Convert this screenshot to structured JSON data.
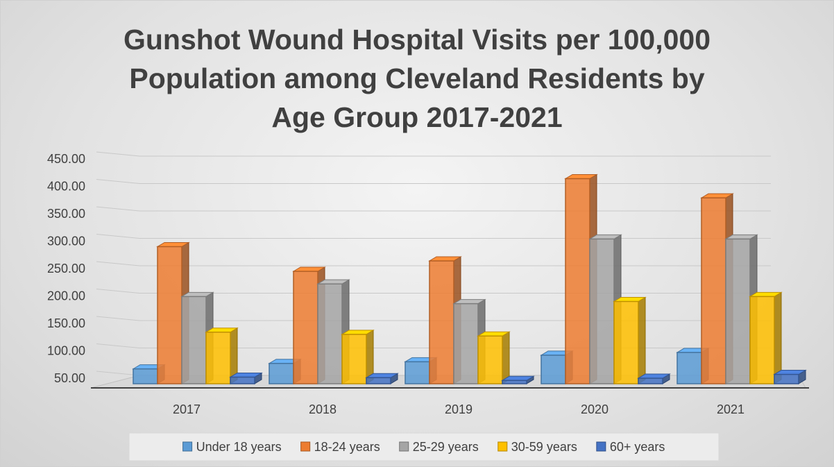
{
  "chart_data": {
    "type": "bar3d",
    "title": "Gunshot Wound Hospital Visits per 100,000 Population among Cleveland Residents by Age Group 2017-2021",
    "categories": [
      "2017",
      "2018",
      "2019",
      "2020",
      "2021"
    ],
    "series": [
      {
        "name": "Under 18 years",
        "color": "#5b9bd5",
        "values": [
          72,
          82,
          85,
          97,
          102
        ]
      },
      {
        "name": "18-24 years",
        "color": "#ed7d31",
        "values": [
          295,
          250,
          269,
          419,
          384
        ]
      },
      {
        "name": "25-29 years",
        "color": "#a5a5a5",
        "values": [
          204,
          227,
          191,
          309,
          309
        ]
      },
      {
        "name": "30-59 years",
        "color": "#ffc000",
        "values": [
          139,
          135,
          132,
          195,
          204
        ]
      },
      {
        "name": "60+ years",
        "color": "#4472c4",
        "values": [
          57,
          56,
          51,
          55,
          62
        ]
      }
    ],
    "ylim": [
      50,
      450
    ],
    "yticks": [
      {
        "value": 50,
        "label": "50.00"
      },
      {
        "value": 100,
        "label": "100.00"
      },
      {
        "value": 150,
        "label": "150.00"
      },
      {
        "value": 200,
        "label": "200.00"
      },
      {
        "value": 250,
        "label": "250.00"
      },
      {
        "value": 300,
        "label": "300.00"
      },
      {
        "value": 350,
        "label": "350.00"
      },
      {
        "value": 400,
        "label": "400.00"
      },
      {
        "value": 450,
        "label": "450.00"
      }
    ],
    "grid": true,
    "legend": "bottom"
  }
}
